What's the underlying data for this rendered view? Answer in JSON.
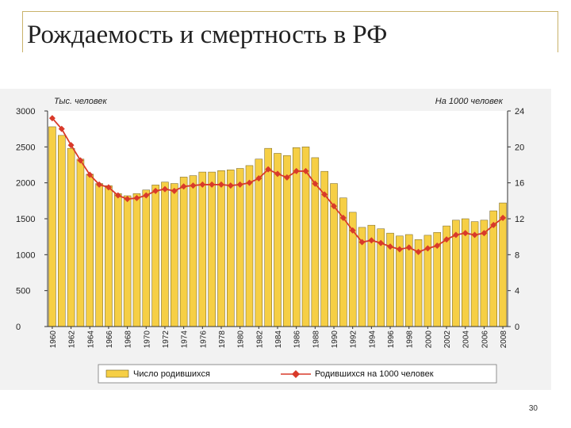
{
  "slide": {
    "title": "Рождаемость и смертность в РФ",
    "page_number": "30"
  },
  "colors": {
    "bar_fill": "#f6cf45",
    "bar_stroke": "#6b5a1a",
    "line": "#d93a2a",
    "background": "#f2f2f2"
  },
  "chart_data": {
    "type": "bar",
    "left_axis_label": "Тыс. человек",
    "right_axis_label": "На 1000 человек",
    "ylim_left": [
      0,
      3000
    ],
    "ylim_right": [
      0,
      24
    ],
    "left_ticks": [
      "0",
      "500",
      "1000",
      "1500",
      "2000",
      "2500",
      "3000"
    ],
    "right_ticks": [
      "0",
      "4",
      "8",
      "12",
      "16",
      "20",
      "24"
    ],
    "grid": false,
    "legend_position": "bottom",
    "x_tick_labels": [
      "1960",
      "1962",
      "1964",
      "1966",
      "1968",
      "1970",
      "1972",
      "1974",
      "1976",
      "1978",
      "1980",
      "1982",
      "1984",
      "1986",
      "1988",
      "1990",
      "1992",
      "1994",
      "1996",
      "1998",
      "2000",
      "2002",
      "2004",
      "2006",
      "2008"
    ],
    "years": [
      1960,
      1961,
      1962,
      1963,
      1964,
      1965,
      1966,
      1967,
      1968,
      1969,
      1970,
      1971,
      1972,
      1973,
      1974,
      1975,
      1976,
      1977,
      1978,
      1979,
      1980,
      1981,
      1982,
      1983,
      1984,
      1985,
      1986,
      1987,
      1988,
      1989,
      1990,
      1991,
      1992,
      1993,
      1994,
      1995,
      1996,
      1997,
      1998,
      1999,
      2000,
      2001,
      2002,
      2003,
      2004,
      2005,
      2006,
      2007,
      2008
    ],
    "series": [
      {
        "name": "Число родившихся",
        "axis": "left",
        "kind": "bar",
        "values": [
          2780,
          2660,
          2480,
          2330,
          2120,
          1990,
          1960,
          1850,
          1820,
          1850,
          1900,
          1970,
          2010,
          1990,
          2080,
          2100,
          2150,
          2150,
          2170,
          2180,
          2200,
          2240,
          2330,
          2480,
          2410,
          2380,
          2490,
          2500,
          2350,
          2160,
          1990,
          1790,
          1590,
          1380,
          1410,
          1360,
          1300,
          1260,
          1280,
          1210,
          1270,
          1310,
          1400,
          1480,
          1500,
          1460,
          1480,
          1610,
          1720
        ]
      },
      {
        "name": "Родившихся на 1000 человек",
        "axis": "right",
        "kind": "line",
        "values": [
          23.2,
          22.0,
          20.2,
          18.5,
          16.9,
          15.8,
          15.5,
          14.6,
          14.2,
          14.3,
          14.6,
          15.1,
          15.3,
          15.1,
          15.6,
          15.7,
          15.8,
          15.8,
          15.8,
          15.7,
          15.8,
          16.0,
          16.5,
          17.5,
          17.0,
          16.6,
          17.3,
          17.3,
          15.9,
          14.7,
          13.4,
          12.1,
          10.7,
          9.4,
          9.6,
          9.3,
          8.9,
          8.6,
          8.8,
          8.3,
          8.7,
          9.0,
          9.7,
          10.2,
          10.4,
          10.2,
          10.4,
          11.3,
          12.1
        ]
      }
    ]
  }
}
